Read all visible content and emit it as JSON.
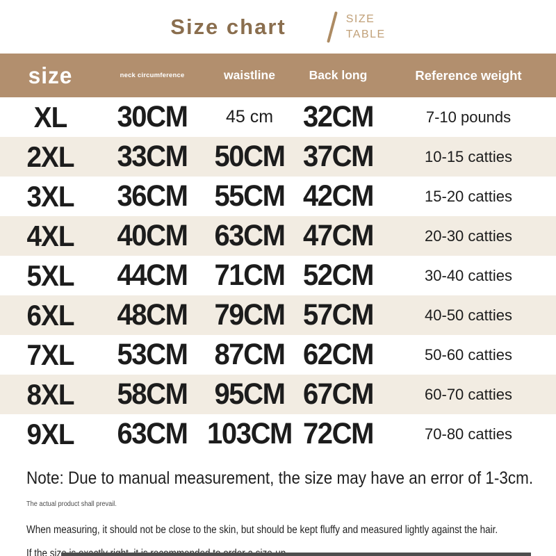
{
  "title": {
    "separator": "/",
    "sub_line1": "SIZE",
    "sub_line2": "TABLE"
  },
  "colors": {
    "header_bg": "#b28f6e",
    "row_alt_bg": "#f2ece2",
    "title_main": "#8a6e4e",
    "title_sub": "#c1a078",
    "text": "#1c1c1c",
    "note_muted": "#4a4a4a",
    "bottom_bar": "#4d4d4d"
  },
  "chart_data": {
    "type": "table",
    "title": "Size chart",
    "columns": [
      "size",
      "neck circumference",
      "waistline",
      "Back long",
      "Reference weight"
    ],
    "rows": [
      [
        "XL",
        "30CM",
        "45 cm",
        "32CM",
        "7-10 pounds"
      ],
      [
        "2XL",
        "33CM",
        "50CM",
        "37CM",
        "10-15 catties"
      ],
      [
        "3XL",
        "36CM",
        "55CM",
        "42CM",
        "15-20 catties"
      ],
      [
        "4XL",
        "40CM",
        "63CM",
        "47CM",
        "20-30 catties"
      ],
      [
        "5XL",
        "44CM",
        "71CM",
        "52CM",
        "30-40 catties"
      ],
      [
        "6XL",
        "48CM",
        "79CM",
        "57CM",
        "40-50 catties"
      ],
      [
        "7XL",
        "53CM",
        "87CM",
        "62CM",
        "50-60 catties"
      ],
      [
        "8XL",
        "58CM",
        "95CM",
        "67CM",
        "60-70 catties"
      ],
      [
        "9XL",
        "63CM",
        "103CM",
        "72CM",
        "70-80 catties"
      ]
    ]
  },
  "notes": {
    "main": "Note: Due to manual measurement, the size may have an error of 1-3cm.",
    "muted": "The actual product shall prevail.",
    "line2": "When measuring, it should not be close to the skin, but should be kept fluffy and measured lightly against the hair.",
    "line3": "If the size is exactly right, it is recommended to order a size·up."
  }
}
